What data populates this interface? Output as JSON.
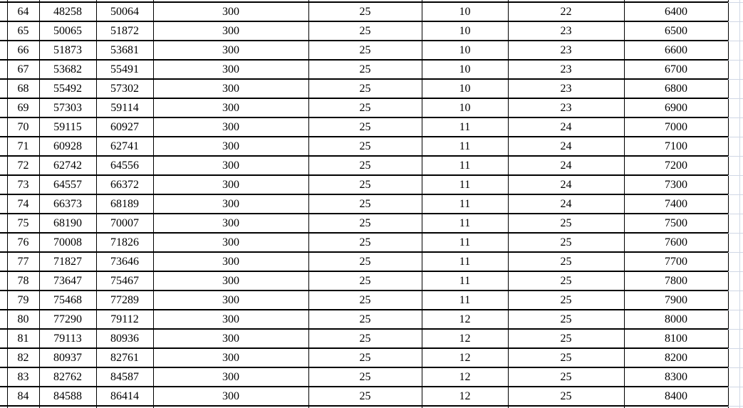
{
  "app": {
    "description_label": "spreadsheet-table-region"
  },
  "colors": {
    "background": "#ffffff",
    "table_border": "#000000",
    "text": "#000000",
    "excel_gridline": "#d0d7e5"
  },
  "table": {
    "visible_row_count": 21,
    "rows": [
      [
        "64",
        "48258",
        "50064",
        "300",
        "25",
        "10",
        "22",
        "6400"
      ],
      [
        "65",
        "50065",
        "51872",
        "300",
        "25",
        "10",
        "23",
        "6500"
      ],
      [
        "66",
        "51873",
        "53681",
        "300",
        "25",
        "10",
        "23",
        "6600"
      ],
      [
        "67",
        "53682",
        "55491",
        "300",
        "25",
        "10",
        "23",
        "6700"
      ],
      [
        "68",
        "55492",
        "57302",
        "300",
        "25",
        "10",
        "23",
        "6800"
      ],
      [
        "69",
        "57303",
        "59114",
        "300",
        "25",
        "10",
        "23",
        "6900"
      ],
      [
        "70",
        "59115",
        "60927",
        "300",
        "25",
        "11",
        "24",
        "7000"
      ],
      [
        "71",
        "60928",
        "62741",
        "300",
        "25",
        "11",
        "24",
        "7100"
      ],
      [
        "72",
        "62742",
        "64556",
        "300",
        "25",
        "11",
        "24",
        "7200"
      ],
      [
        "73",
        "64557",
        "66372",
        "300",
        "25",
        "11",
        "24",
        "7300"
      ],
      [
        "74",
        "66373",
        "68189",
        "300",
        "25",
        "11",
        "24",
        "7400"
      ],
      [
        "75",
        "68190",
        "70007",
        "300",
        "25",
        "11",
        "25",
        "7500"
      ],
      [
        "76",
        "70008",
        "71826",
        "300",
        "25",
        "11",
        "25",
        "7600"
      ],
      [
        "77",
        "71827",
        "73646",
        "300",
        "25",
        "11",
        "25",
        "7700"
      ],
      [
        "78",
        "73647",
        "75467",
        "300",
        "25",
        "11",
        "25",
        "7800"
      ],
      [
        "79",
        "75468",
        "77289",
        "300",
        "25",
        "11",
        "25",
        "7900"
      ],
      [
        "80",
        "77290",
        "79112",
        "300",
        "25",
        "12",
        "25",
        "8000"
      ],
      [
        "81",
        "79113",
        "80936",
        "300",
        "25",
        "12",
        "25",
        "8100"
      ],
      [
        "82",
        "80937",
        "82761",
        "300",
        "25",
        "12",
        "25",
        "8200"
      ],
      [
        "83",
        "82762",
        "84587",
        "300",
        "25",
        "12",
        "25",
        "8300"
      ],
      [
        "84",
        "84588",
        "86414",
        "300",
        "25",
        "12",
        "25",
        "8400"
      ]
    ]
  }
}
